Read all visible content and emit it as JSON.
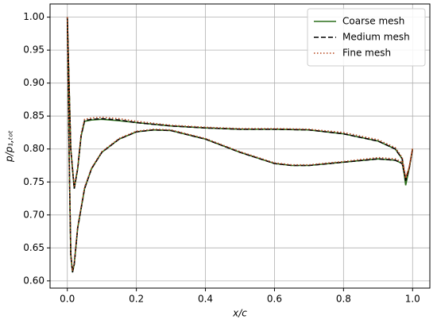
{
  "chart_data": {
    "type": "line",
    "xlabel": "x/c",
    "ylabel": "p/p₁,ₜₒₜ",
    "xlim": [
      -0.05,
      1.05
    ],
    "ylim": [
      0.589,
      1.02
    ],
    "xticks": [
      {
        "value": 0,
        "label": "0.0"
      },
      {
        "value": 0.2,
        "label": "0.2"
      },
      {
        "value": 0.4,
        "label": "0.4"
      },
      {
        "value": 0.6,
        "label": "0.6"
      },
      {
        "value": 0.8,
        "label": "0.8"
      },
      {
        "value": 1,
        "label": "1.0"
      }
    ],
    "yticks": [
      {
        "value": 0.6,
        "label": "0.60"
      },
      {
        "value": 0.65,
        "label": "0.65"
      },
      {
        "value": 0.7,
        "label": "0.70"
      },
      {
        "value": 0.75,
        "label": "0.75"
      },
      {
        "value": 0.8,
        "label": "0.80"
      },
      {
        "value": 0.85,
        "label": "0.85"
      },
      {
        "value": 0.9,
        "label": "0.90"
      },
      {
        "value": 0.95,
        "label": "0.95"
      },
      {
        "value": 1,
        "label": "1.00"
      }
    ],
    "grid": true,
    "legend": "upper right",
    "x": [
      0,
      0.005,
      0.01,
      0.02,
      0.03,
      0.04,
      0.05,
      0.07,
      0.1,
      0.15,
      0.2,
      0.3,
      0.4,
      0.5,
      0.6,
      0.7,
      0.8,
      0.9,
      0.95,
      0.97,
      0.98,
      0.99,
      1.0,
      1.0,
      0.99,
      0.98,
      0.97,
      0.95,
      0.9,
      0.8,
      0.7,
      0.65,
      0.6,
      0.5,
      0.4,
      0.3,
      0.25,
      0.2,
      0.15,
      0.1,
      0.07,
      0.05,
      0.03,
      0.02,
      0.015,
      0.01,
      0.005,
      0
    ],
    "series": [
      {
        "name": "Coarse mesh",
        "color": "#2a6e1a",
        "linestyle": "solid",
        "values": [
          1.0,
          0.9,
          0.8,
          0.74,
          0.77,
          0.82,
          0.842,
          0.844,
          0.845,
          0.843,
          0.84,
          0.835,
          0.832,
          0.83,
          0.83,
          0.829,
          0.823,
          0.812,
          0.8,
          0.785,
          0.745,
          0.77,
          0.8,
          0.8,
          0.77,
          0.75,
          0.778,
          0.783,
          0.785,
          0.78,
          0.775,
          0.775,
          0.778,
          0.795,
          0.815,
          0.828,
          0.829,
          0.826,
          0.815,
          0.795,
          0.77,
          0.74,
          0.68,
          0.625,
          0.613,
          0.64,
          0.8,
          1.0
        ]
      },
      {
        "name": "Medium mesh",
        "color": "#000000",
        "linestyle": "dashed",
        "values": [
          1.0,
          0.9,
          0.8,
          0.74,
          0.77,
          0.82,
          0.843,
          0.845,
          0.846,
          0.844,
          0.84,
          0.835,
          0.832,
          0.83,
          0.83,
          0.829,
          0.823,
          0.812,
          0.8,
          0.785,
          0.752,
          0.77,
          0.8,
          0.8,
          0.77,
          0.755,
          0.778,
          0.783,
          0.785,
          0.78,
          0.775,
          0.775,
          0.778,
          0.795,
          0.815,
          0.828,
          0.829,
          0.826,
          0.815,
          0.795,
          0.77,
          0.74,
          0.68,
          0.625,
          0.613,
          0.64,
          0.8,
          1.0
        ]
      },
      {
        "name": "Fine mesh",
        "color": "#b5451b",
        "linestyle": "dotted",
        "values": [
          1.0,
          0.9,
          0.8,
          0.742,
          0.772,
          0.823,
          0.845,
          0.847,
          0.848,
          0.846,
          0.842,
          0.836,
          0.833,
          0.831,
          0.831,
          0.83,
          0.825,
          0.814,
          0.802,
          0.787,
          0.755,
          0.772,
          0.801,
          0.801,
          0.772,
          0.757,
          0.78,
          0.785,
          0.787,
          0.781,
          0.776,
          0.776,
          0.779,
          0.796,
          0.816,
          0.829,
          0.83,
          0.827,
          0.816,
          0.796,
          0.771,
          0.742,
          0.682,
          0.627,
          0.615,
          0.642,
          0.8,
          1.0
        ]
      }
    ]
  }
}
